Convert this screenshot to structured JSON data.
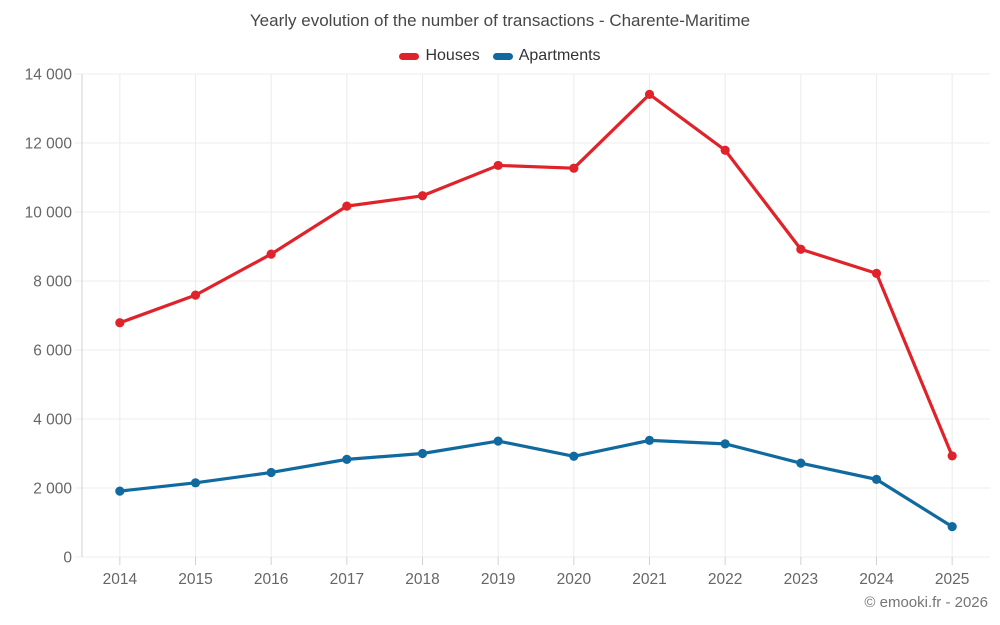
{
  "title": "Yearly evolution of the number of transactions - Charente-Maritime",
  "copyright": "© emooki.fr - 2026",
  "colors": {
    "houses": "#e0232a",
    "apartments": "#116a9f",
    "gridline": "#ececec",
    "axis_line": "#d2d2d2",
    "title_text": "#474747",
    "legend_text": "#333333",
    "axis_text": "#666666",
    "copyright_text": "#757575",
    "background": "#ffffff"
  },
  "chart_data": {
    "type": "line",
    "title": "Yearly evolution of the number of transactions - Charente-Maritime",
    "xlabel": "",
    "ylabel": "",
    "categories": [
      "2014",
      "2015",
      "2016",
      "2017",
      "2018",
      "2019",
      "2020",
      "2021",
      "2022",
      "2023",
      "2024",
      "2025"
    ],
    "series": [
      {
        "name": "Houses",
        "color": "#e0232a",
        "values": [
          6790,
          7590,
          8780,
          10170,
          10470,
          11350,
          11270,
          13410,
          11790,
          8920,
          8220,
          2930
        ]
      },
      {
        "name": "Apartments",
        "color": "#116a9f",
        "values": [
          1910,
          2150,
          2450,
          2830,
          3000,
          3360,
          2920,
          3380,
          3280,
          2720,
          2250,
          880
        ]
      }
    ],
    "ylim": [
      0,
      14000
    ],
    "ytick_interval": 2000,
    "ytick_labels": [
      "0",
      "2 000",
      "4 000",
      "6 000",
      "8 000",
      "10 000",
      "12 000",
      "14 000"
    ],
    "grid": true,
    "legend_position": "top",
    "marker": "circle"
  }
}
